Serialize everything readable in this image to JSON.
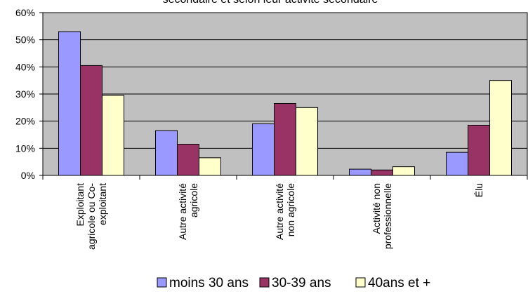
{
  "chart_data": {
    "type": "bar",
    "title": "secondaire et selon leur activité secondaire",
    "categories": [
      [
        "Exploitant",
        "agricole ou Co-",
        "exploitant"
      ],
      [
        "Autre activité",
        "agricole"
      ],
      [
        "Autre activité",
        "non agricole"
      ],
      [
        "Activité non",
        "professionnelle"
      ],
      [
        "Élu"
      ]
    ],
    "series": [
      {
        "name": "moins 30 ans",
        "color": "#9999ff",
        "values": [
          53,
          16.5,
          19,
          2.3,
          8.5
        ]
      },
      {
        "name": "30-39 ans",
        "color": "#993366",
        "values": [
          40.5,
          11.5,
          26.5,
          2,
          18.5
        ]
      },
      {
        "name": "40ans et +",
        "color": "#ffffcc",
        "values": [
          29.5,
          6.5,
          25,
          3.2,
          35
        ]
      }
    ],
    "ylim": [
      0,
      60
    ],
    "yticks": [
      "0%",
      "10%",
      "20%",
      "30%",
      "40%",
      "50%",
      "60%"
    ],
    "ytick_values": [
      0,
      10,
      20,
      30,
      40,
      50,
      60
    ],
    "grid": true,
    "plot_background": "#c0c0c0",
    "legend_position": "bottom"
  }
}
